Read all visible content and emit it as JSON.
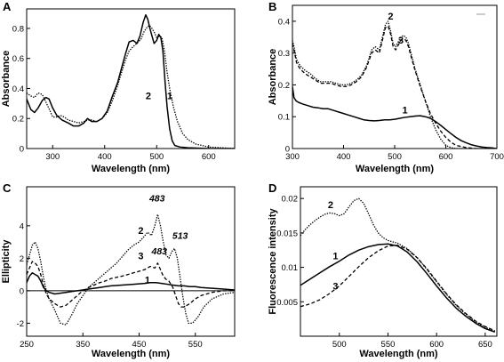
{
  "chart_data": [
    {
      "panel": "A",
      "type": "line",
      "xlabel": "Wavelength (nm)",
      "ylabel": "Absorbance",
      "xlim": [
        250,
        650
      ],
      "ylim": [
        0,
        0.93
      ],
      "xticks": [
        300,
        400,
        500,
        600
      ],
      "yticks": [
        0,
        0.2,
        0.4,
        0.6,
        0.8
      ],
      "series": [
        {
          "name": "1",
          "style": "dotted",
          "x": [
            250,
            258,
            265,
            272,
            280,
            287,
            295,
            300,
            308,
            315,
            322,
            330,
            340,
            350,
            360,
            368,
            375,
            385,
            395,
            405,
            415,
            425,
            432,
            440,
            447,
            455,
            462,
            470,
            476,
            482,
            486,
            491,
            496,
            501,
            505,
            510,
            515,
            520,
            525,
            532,
            540,
            550,
            560,
            575,
            600,
            625,
            650
          ],
          "y": [
            0.37,
            0.35,
            0.34,
            0.37,
            0.36,
            0.31,
            0.25,
            0.21,
            0.21,
            0.22,
            0.21,
            0.19,
            0.18,
            0.17,
            0.18,
            0.19,
            0.19,
            0.18,
            0.2,
            0.24,
            0.32,
            0.42,
            0.5,
            0.59,
            0.65,
            0.68,
            0.7,
            0.73,
            0.78,
            0.81,
            0.82,
            0.8,
            0.77,
            0.73,
            0.75,
            0.74,
            0.65,
            0.51,
            0.4,
            0.28,
            0.18,
            0.1,
            0.06,
            0.03,
            0.01,
            0.005,
            0.0
          ]
        },
        {
          "name": "2",
          "style": "solid",
          "x": [
            250,
            258,
            265,
            272,
            280,
            287,
            293,
            300,
            308,
            318,
            330,
            340,
            350,
            360,
            367,
            375,
            385,
            395,
            405,
            415,
            425,
            432,
            440,
            447,
            455,
            462,
            468,
            474,
            479,
            483,
            487,
            491,
            495,
            500,
            504,
            508,
            512,
            516,
            520,
            525,
            530,
            535,
            545,
            560,
            600,
            650
          ],
          "y": [
            0.33,
            0.26,
            0.24,
            0.27,
            0.32,
            0.34,
            0.33,
            0.27,
            0.22,
            0.19,
            0.17,
            0.15,
            0.15,
            0.17,
            0.2,
            0.18,
            0.18,
            0.2,
            0.25,
            0.35,
            0.44,
            0.53,
            0.63,
            0.71,
            0.72,
            0.7,
            0.75,
            0.84,
            0.89,
            0.86,
            0.8,
            0.75,
            0.7,
            0.72,
            0.76,
            0.74,
            0.65,
            0.45,
            0.28,
            0.13,
            0.05,
            0.02,
            0.01,
            0.005,
            0.0,
            0.0
          ]
        }
      ],
      "labels": [
        {
          "text": "2",
          "x": 484,
          "y": 0.33
        },
        {
          "text": "1",
          "x": 525,
          "y": 0.33
        }
      ]
    },
    {
      "panel": "B",
      "type": "line",
      "xlabel": "Wavelength (nm)",
      "ylabel": "Absorbance",
      "xlim": [
        300,
        700
      ],
      "ylim": [
        0,
        0.45
      ],
      "xticks": [
        300,
        400,
        500,
        600,
        700
      ],
      "yticks": [
        0,
        0.1,
        0.2,
        0.3,
        0.4
      ],
      "series": [
        {
          "name": "1",
          "style": "solid",
          "x": [
            300,
            303,
            307,
            312,
            320,
            330,
            340,
            350,
            360,
            370,
            380,
            390,
            400,
            410,
            420,
            430,
            440,
            450,
            460,
            470,
            480,
            490,
            500,
            510,
            520,
            530,
            540,
            550,
            560,
            570,
            580,
            590,
            600,
            610,
            620,
            630,
            640,
            650,
            660,
            670,
            680,
            690,
            700
          ],
          "y": [
            0.195,
            0.16,
            0.15,
            0.145,
            0.14,
            0.135,
            0.13,
            0.128,
            0.125,
            0.125,
            0.12,
            0.115,
            0.11,
            0.105,
            0.1,
            0.095,
            0.09,
            0.088,
            0.087,
            0.088,
            0.09,
            0.09,
            0.092,
            0.095,
            0.098,
            0.1,
            0.102,
            0.103,
            0.1,
            0.095,
            0.085,
            0.073,
            0.06,
            0.047,
            0.035,
            0.025,
            0.018,
            0.012,
            0.008,
            0.005,
            0.003,
            0.002,
            0.0
          ]
        },
        {
          "name": "2",
          "style": "dotted",
          "x": [
            300,
            303,
            308,
            315,
            325,
            335,
            345,
            355,
            365,
            375,
            385,
            395,
            405,
            415,
            425,
            435,
            445,
            455,
            462,
            470,
            476,
            482,
            487,
            492,
            497,
            502,
            507,
            512,
            517,
            522,
            527,
            532,
            540,
            550,
            560,
            570,
            580,
            590,
            600,
            610,
            620,
            640,
            660,
            700
          ],
          "y": [
            0.34,
            0.32,
            0.28,
            0.26,
            0.245,
            0.235,
            0.22,
            0.21,
            0.21,
            0.21,
            0.205,
            0.2,
            0.2,
            0.205,
            0.215,
            0.23,
            0.26,
            0.31,
            0.32,
            0.31,
            0.35,
            0.39,
            0.4,
            0.37,
            0.33,
            0.32,
            0.335,
            0.35,
            0.355,
            0.35,
            0.33,
            0.3,
            0.25,
            0.2,
            0.15,
            0.1,
            0.06,
            0.03,
            0.01,
            0.003,
            0.0,
            0.0,
            0.0,
            0.0
          ]
        },
        {
          "name": "3",
          "style": "dashed",
          "x": [
            300,
            303,
            308,
            315,
            325,
            335,
            345,
            355,
            365,
            375,
            385,
            395,
            405,
            415,
            425,
            435,
            445,
            455,
            462,
            470,
            476,
            482,
            487,
            492,
            497,
            502,
            507,
            512,
            517,
            522,
            527,
            532,
            540,
            550,
            560,
            570,
            580,
            590,
            600,
            610,
            620,
            640,
            660,
            700
          ],
          "y": [
            0.33,
            0.31,
            0.27,
            0.25,
            0.235,
            0.225,
            0.215,
            0.205,
            0.205,
            0.205,
            0.2,
            0.195,
            0.195,
            0.2,
            0.21,
            0.225,
            0.255,
            0.3,
            0.31,
            0.3,
            0.34,
            0.38,
            0.385,
            0.36,
            0.32,
            0.31,
            0.325,
            0.34,
            0.345,
            0.34,
            0.32,
            0.29,
            0.245,
            0.195,
            0.15,
            0.11,
            0.08,
            0.055,
            0.035,
            0.02,
            0.01,
            0.003,
            0.0,
            0.0
          ]
        }
      ],
      "labels": [
        {
          "text": "2",
          "x": 492,
          "y": 0.405
        },
        {
          "text": "3",
          "x": 512,
          "y": 0.33
        },
        {
          "text": "1",
          "x": 520,
          "y": 0.11
        }
      ]
    },
    {
      "panel": "C",
      "type": "line",
      "xlabel": "Wavelength (nm)",
      "ylabel": "Ellipticity",
      "xlim": [
        250,
        620
      ],
      "ylim": [
        -2.8,
        6.4
      ],
      "xticks": [
        250,
        350,
        450,
        550
      ],
      "yticks": [
        -2,
        0,
        2,
        4
      ],
      "zero_line": true,
      "series": [
        {
          "name": "1",
          "style": "solid",
          "x": [
            250,
            255,
            260,
            265,
            270,
            275,
            280,
            285,
            290,
            300,
            310,
            320,
            330,
            340,
            350,
            360,
            370,
            380,
            390,
            400,
            420,
            440,
            460,
            470,
            480,
            490,
            500,
            510,
            520,
            530,
            540,
            550,
            560,
            580,
            600,
            620
          ],
          "y": [
            0.5,
            0.9,
            1.1,
            1.0,
            0.9,
            0.6,
            0.2,
            0.0,
            -0.1,
            -0.2,
            -0.15,
            -0.1,
            -0.05,
            0.0,
            0.05,
            0.1,
            0.15,
            0.2,
            0.25,
            0.3,
            0.35,
            0.4,
            0.45,
            0.5,
            0.5,
            0.45,
            0.4,
            0.35,
            0.3,
            0.3,
            0.25,
            0.25,
            0.2,
            0.15,
            0.1,
            0.05
          ]
        },
        {
          "name": "2",
          "style": "dotted",
          "x": [
            250,
            255,
            260,
            265,
            270,
            275,
            280,
            285,
            290,
            300,
            310,
            320,
            330,
            340,
            350,
            360,
            370,
            380,
            390,
            400,
            410,
            420,
            430,
            440,
            450,
            458,
            465,
            472,
            478,
            483,
            488,
            493,
            498,
            503,
            508,
            513,
            518,
            523,
            528,
            533,
            538,
            545,
            555,
            565,
            580,
            600,
            620
          ],
          "y": [
            1.6,
            2.2,
            2.8,
            3.0,
            2.6,
            1.8,
            0.8,
            0.0,
            -0.5,
            -1.2,
            -2.0,
            -2.1,
            -1.5,
            -0.8,
            -0.3,
            0.2,
            0.5,
            0.8,
            1.1,
            1.4,
            1.7,
            2.1,
            2.5,
            2.8,
            3.0,
            3.3,
            3.6,
            3.4,
            4.0,
            4.7,
            4.0,
            3.0,
            2.2,
            2.0,
            2.4,
            2.6,
            2.0,
            0.8,
            -0.4,
            -1.4,
            -2.0,
            -2.0,
            -1.6,
            -1.0,
            -0.5,
            -0.2,
            -0.1
          ]
        },
        {
          "name": "3",
          "style": "dashed",
          "x": [
            250,
            255,
            260,
            265,
            270,
            275,
            280,
            285,
            290,
            300,
            310,
            320,
            330,
            340,
            350,
            360,
            370,
            380,
            390,
            400,
            420,
            440,
            460,
            470,
            478,
            483,
            488,
            493,
            498,
            503,
            510,
            515,
            520,
            525,
            530,
            540,
            550,
            560,
            580,
            600,
            620
          ],
          "y": [
            1.0,
            1.4,
            1.8,
            1.7,
            1.5,
            1.0,
            0.3,
            -0.2,
            -0.5,
            -0.8,
            -1.0,
            -0.9,
            -0.6,
            -0.3,
            0.0,
            0.2,
            0.35,
            0.5,
            0.6,
            0.75,
            0.9,
            1.1,
            1.3,
            1.5,
            1.4,
            1.7,
            1.3,
            0.9,
            0.7,
            0.6,
            0.2,
            -0.3,
            -0.8,
            -1.0,
            -1.0,
            -0.8,
            -0.5,
            -0.3,
            -0.1,
            0.0,
            0.0
          ]
        }
      ],
      "labels": [
        {
          "text": "2",
          "x": 453,
          "y": 3.5
        },
        {
          "text": "3",
          "x": 453,
          "y": 1.95
        },
        {
          "text": "1",
          "x": 465,
          "y": 0.45
        }
      ],
      "annotations": [
        {
          "text": "483",
          "x": 482,
          "y": 5.5
        },
        {
          "text": "513",
          "x": 523,
          "y": 3.2
        },
        {
          "text": "483",
          "x": 486,
          "y": 2.25
        }
      ]
    },
    {
      "panel": "D",
      "type": "line",
      "xlabel": "Wavelength (nm)",
      "ylabel": "Fluorescence intensity",
      "xlim": [
        460,
        662
      ],
      "ylim": [
        0,
        0.0217
      ],
      "xticks": [
        500,
        550,
        600,
        650
      ],
      "yticks": [
        0.005,
        0.01,
        0.015,
        0.02
      ],
      "series": [
        {
          "name": "1",
          "style": "solid",
          "x": [
            460,
            470,
            480,
            490,
            500,
            510,
            520,
            530,
            540,
            550,
            560,
            570,
            580,
            590,
            600,
            610,
            620,
            630,
            640,
            650,
            660
          ],
          "y": [
            0.0074,
            0.0083,
            0.0092,
            0.0101,
            0.0109,
            0.0118,
            0.0125,
            0.013,
            0.0133,
            0.0134,
            0.0131,
            0.0122,
            0.0108,
            0.0091,
            0.0073,
            0.0056,
            0.0041,
            0.0029,
            0.0019,
            0.0011,
            0.0006
          ]
        },
        {
          "name": "2",
          "style": "dotted",
          "x": [
            460,
            465,
            470,
            475,
            480,
            485,
            490,
            495,
            500,
            505,
            510,
            515,
            520,
            525,
            530,
            535,
            540,
            545,
            550,
            555,
            560,
            570,
            580,
            590,
            600,
            610,
            620,
            630,
            640,
            650,
            660
          ],
          "y": [
            0.0146,
            0.0155,
            0.0162,
            0.0168,
            0.0173,
            0.0177,
            0.0179,
            0.0178,
            0.0175,
            0.0178,
            0.0188,
            0.0197,
            0.02,
            0.0193,
            0.0178,
            0.0162,
            0.015,
            0.0143,
            0.0139,
            0.0137,
            0.0135,
            0.0127,
            0.0114,
            0.0097,
            0.0079,
            0.0061,
            0.0045,
            0.0032,
            0.0021,
            0.0013,
            0.0007
          ]
        },
        {
          "name": "3",
          "style": "dashed",
          "x": [
            460,
            470,
            480,
            490,
            500,
            510,
            520,
            530,
            540,
            550,
            560,
            570,
            580,
            590,
            600,
            610,
            620,
            630,
            640,
            650,
            660
          ],
          "y": [
            0.0043,
            0.0047,
            0.0053,
            0.0062,
            0.0073,
            0.0087,
            0.0101,
            0.0114,
            0.0124,
            0.0131,
            0.0132,
            0.0126,
            0.0114,
            0.0098,
            0.008,
            0.0062,
            0.0046,
            0.0033,
            0.0022,
            0.0014,
            0.0008
          ]
        }
      ],
      "labels": [
        {
          "text": "2",
          "x": 491,
          "y": 0.0186
        },
        {
          "text": "1",
          "x": 496,
          "y": 0.0112
        },
        {
          "text": "3",
          "x": 496,
          "y": 0.0068
        }
      ]
    }
  ]
}
